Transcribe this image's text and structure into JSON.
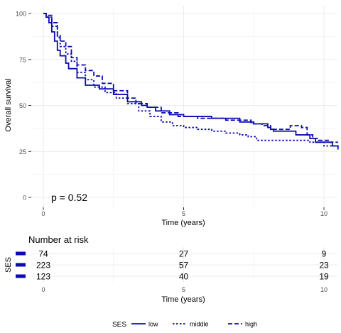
{
  "chart_data": {
    "type": "line",
    "subtype": "kaplan-meier",
    "title": "",
    "xlabel": "Time (years)",
    "ylabel": "Overall survival",
    "xlim": [
      0,
      10.5
    ],
    "ylim": [
      0,
      100
    ],
    "x_ticks": [
      0,
      5,
      10
    ],
    "y_ticks": [
      0,
      25,
      50,
      75,
      100
    ],
    "grid": true,
    "annotation": "p = 0.52",
    "colors": {
      "line": "#0b0bb0",
      "grid": "#ebebeb",
      "text": "#4d4d4d"
    },
    "series": [
      {
        "name": "low",
        "dash": "solid",
        "points": [
          [
            0,
            100
          ],
          [
            0.1,
            98
          ],
          [
            0.2,
            95
          ],
          [
            0.3,
            90
          ],
          [
            0.4,
            85
          ],
          [
            0.5,
            80
          ],
          [
            0.6,
            77
          ],
          [
            0.8,
            73
          ],
          [
            0.9,
            70
          ],
          [
            1.2,
            65
          ],
          [
            1.5,
            61
          ],
          [
            2.0,
            59
          ],
          [
            2.5,
            56
          ],
          [
            3.0,
            52
          ],
          [
            3.5,
            50
          ],
          [
            3.7,
            49
          ],
          [
            4.0,
            47
          ],
          [
            4.5,
            45
          ],
          [
            5.0,
            44
          ],
          [
            6.0,
            43
          ],
          [
            7.0,
            41
          ],
          [
            7.5,
            40
          ],
          [
            8.0,
            38
          ],
          [
            8.1,
            37
          ],
          [
            8.2,
            36
          ],
          [
            9.0,
            34
          ],
          [
            9.5,
            32
          ],
          [
            9.7,
            30
          ],
          [
            10.3,
            28
          ],
          [
            10.5,
            26
          ]
        ]
      },
      {
        "name": "middle",
        "dash": "dotted",
        "points": [
          [
            0,
            100
          ],
          [
            0.1,
            98
          ],
          [
            0.3,
            93
          ],
          [
            0.5,
            87
          ],
          [
            0.6,
            82
          ],
          [
            0.8,
            78
          ],
          [
            1.0,
            74
          ],
          [
            1.2,
            68
          ],
          [
            1.5,
            64
          ],
          [
            1.8,
            60
          ],
          [
            2.2,
            57
          ],
          [
            2.6,
            54
          ],
          [
            3.0,
            51
          ],
          [
            3.4,
            47
          ],
          [
            3.8,
            44
          ],
          [
            4.2,
            41
          ],
          [
            4.6,
            39
          ],
          [
            5.0,
            38
          ],
          [
            5.5,
            37
          ],
          [
            6.0,
            36
          ],
          [
            6.5,
            35
          ],
          [
            7.0,
            34
          ],
          [
            7.3,
            33
          ],
          [
            7.6,
            31
          ],
          [
            8.0,
            31
          ],
          [
            9.0,
            31
          ],
          [
            9.5,
            30
          ],
          [
            10.0,
            28
          ],
          [
            10.5,
            27
          ]
        ]
      },
      {
        "name": "high",
        "dash": "dashed",
        "points": [
          [
            0,
            100
          ],
          [
            0.1,
            99
          ],
          [
            0.3,
            95
          ],
          [
            0.5,
            88
          ],
          [
            0.6,
            85
          ],
          [
            0.8,
            82
          ],
          [
            1.0,
            76
          ],
          [
            1.2,
            72
          ],
          [
            1.5,
            69
          ],
          [
            1.8,
            66
          ],
          [
            2.1,
            62
          ],
          [
            2.5,
            58
          ],
          [
            3.0,
            54
          ],
          [
            3.3,
            51
          ],
          [
            3.7,
            49
          ],
          [
            4.2,
            46
          ],
          [
            4.8,
            44
          ],
          [
            5.5,
            43
          ],
          [
            6.5,
            42
          ],
          [
            7.2,
            42
          ],
          [
            7.4,
            40
          ],
          [
            7.8,
            39
          ],
          [
            8.1,
            37
          ],
          [
            8.6,
            37
          ],
          [
            8.8,
            39
          ],
          [
            9.2,
            38
          ],
          [
            9.4,
            34
          ],
          [
            9.6,
            32
          ],
          [
            9.8,
            31
          ],
          [
            10.2,
            30
          ],
          [
            10.5,
            30
          ]
        ]
      }
    ],
    "risk_table": {
      "title": "Number at risk",
      "ylabel": "SES",
      "xlabel": "Time (years)",
      "times": [
        0,
        5,
        10
      ],
      "rows": [
        {
          "group": "low",
          "counts": [
            "74",
            "27",
            "9"
          ]
        },
        {
          "group": "middle",
          "counts": [
            "223",
            "57",
            "23"
          ]
        },
        {
          "group": "high",
          "counts": [
            "123",
            "40",
            "19"
          ]
        }
      ]
    },
    "legend": {
      "title": "SES",
      "position": "bottom",
      "items": [
        {
          "label": "low",
          "dash": "solid"
        },
        {
          "label": "middle",
          "dash": "dotted"
        },
        {
          "label": "high",
          "dash": "dashed"
        }
      ]
    }
  }
}
